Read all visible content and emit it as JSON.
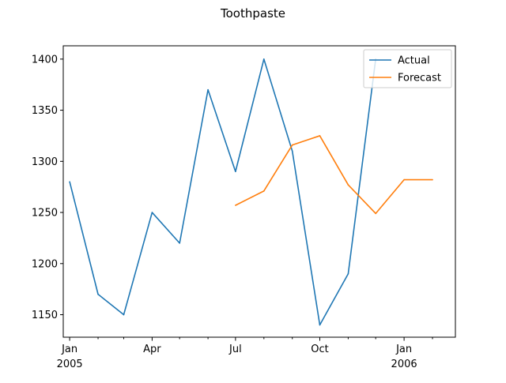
{
  "chart_data": {
    "type": "line",
    "title": "Toothpaste",
    "xlabel": "",
    "ylabel": "",
    "x": [
      "2005-01",
      "2005-02",
      "2005-03",
      "2005-04",
      "2005-05",
      "2005-06",
      "2005-07",
      "2005-08",
      "2005-09",
      "2005-10",
      "2005-11",
      "2005-12",
      "2006-01",
      "2006-02"
    ],
    "series": [
      {
        "name": "Actual",
        "color": "#1f77b4",
        "x": [
          "2005-01",
          "2005-02",
          "2005-03",
          "2005-04",
          "2005-05",
          "2005-06",
          "2005-07",
          "2005-08",
          "2005-09",
          "2005-10",
          "2005-11",
          "2005-12"
        ],
        "values": [
          1280,
          1170,
          1150,
          1250,
          1220,
          1370,
          1290,
          1400,
          1310,
          1140,
          1190,
          1400
        ]
      },
      {
        "name": "Forecast",
        "color": "#ff7f0e",
        "x": [
          "2005-07",
          "2005-08",
          "2005-09",
          "2005-10",
          "2005-11",
          "2005-12",
          "2006-01",
          "2006-02"
        ],
        "values": [
          1257,
          1271,
          1316,
          1325,
          1277,
          1249,
          1282,
          1282
        ]
      }
    ],
    "xlim": [
      "2004-12-25",
      "2006-02-26"
    ],
    "ylim": [
      1128,
      1413
    ],
    "yticks": [
      1150,
      1200,
      1250,
      1300,
      1350,
      1400
    ],
    "ytick_labels": [
      "1150",
      "1200",
      "1250",
      "1300",
      "1350",
      "1400"
    ],
    "xticks_major": [
      {
        "x": "2005-01",
        "label": "Jan",
        "sublabel": "2005"
      },
      {
        "x": "2005-04",
        "label": "Apr",
        "sublabel": ""
      },
      {
        "x": "2005-07",
        "label": "Jul",
        "sublabel": ""
      },
      {
        "x": "2005-10",
        "label": "Oct",
        "sublabel": ""
      },
      {
        "x": "2006-01",
        "label": "Jan",
        "sublabel": "2006"
      }
    ],
    "xticks_minor": [
      "2005-02",
      "2005-03",
      "2005-05",
      "2005-06",
      "2005-08",
      "2005-09",
      "2005-11",
      "2005-12",
      "2006-02"
    ],
    "grid": false,
    "legend": "top-right"
  }
}
